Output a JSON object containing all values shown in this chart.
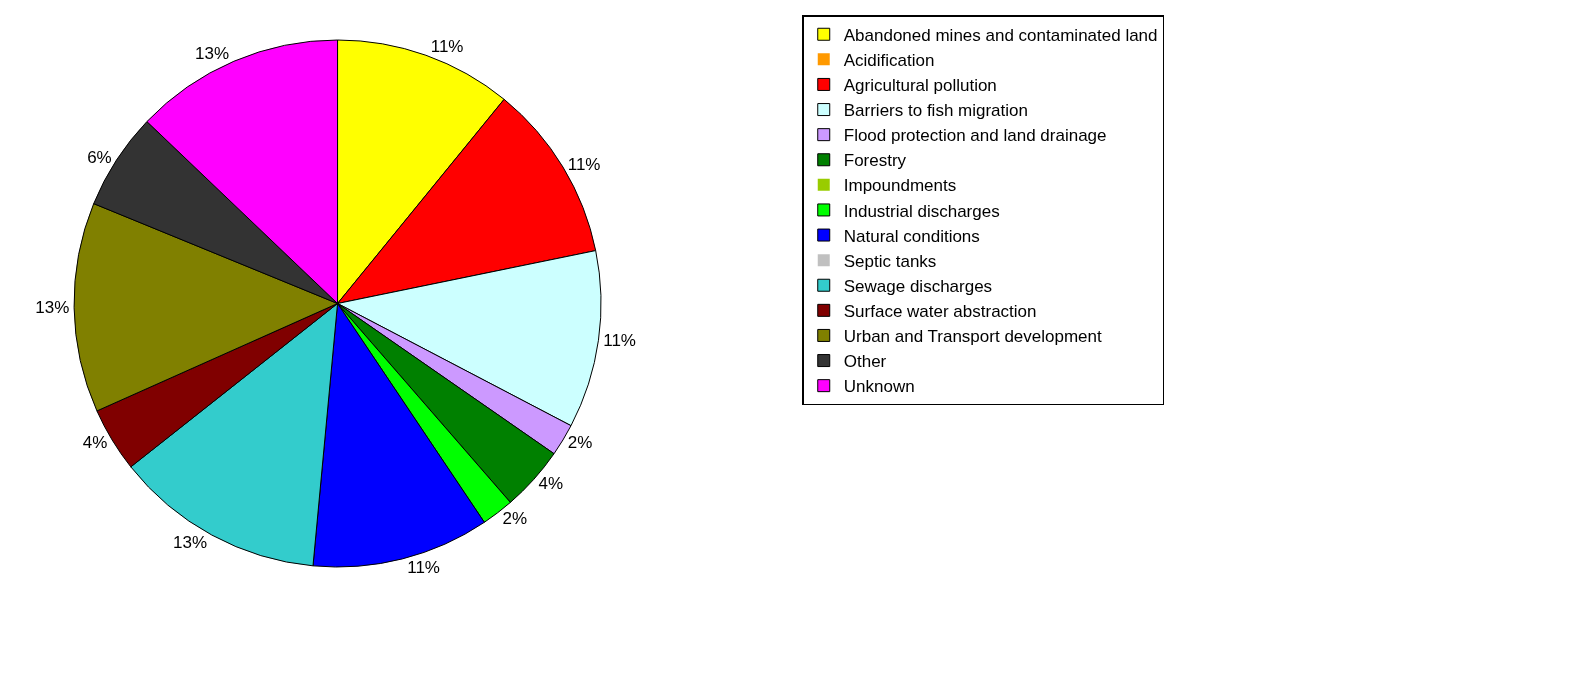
{
  "chart_data": {
    "type": "pie",
    "categories": [
      "Abandoned mines and contaminated land",
      "Acidification",
      "Agricultural pollution",
      "Barriers to fish migration",
      "Flood protection and land drainage",
      "Forestry",
      "Impoundments",
      "Industrial discharges",
      "Natural conditions",
      "Septic tanks",
      "Sewage discharges",
      "Surface water abstraction",
      "Urban and Transport development",
      "Other",
      "Unknown"
    ],
    "values": [
      11,
      0,
      11,
      11,
      2,
      4,
      0,
      2,
      11,
      0,
      13,
      4,
      13,
      6,
      13
    ],
    "value_labels": [
      "11%",
      null,
      "11%",
      "11%",
      "2%",
      "4%",
      null,
      "2%",
      "11%",
      null,
      "13%",
      "4%",
      "13%",
      "6%",
      "13%"
    ],
    "colors": [
      "#ffff00",
      "#ff9900",
      "#ff0000",
      "#ccffff",
      "#cc99ff",
      "#008000",
      "#99cc00",
      "#00ff00",
      "#0000ff",
      "#c0c0c0",
      "#33cccc",
      "#800000",
      "#808000",
      "#333333",
      "#ff00ff"
    ],
    "legend": "right"
  }
}
